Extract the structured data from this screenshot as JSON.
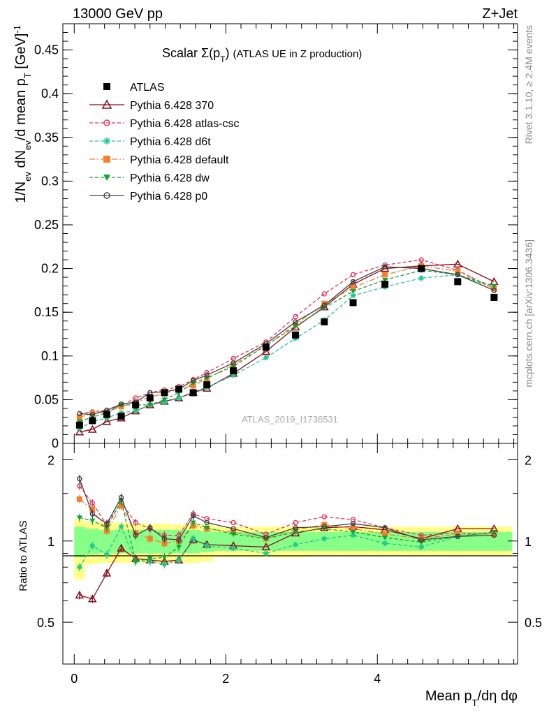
{
  "header": {
    "left": "13000 GeV pp",
    "right": "Z+Jet"
  },
  "side_labels": {
    "rivet": "Rivet 3.1.10, ≥ 2.4M events",
    "mcplots": "mcplots.cern.ch [arXiv:1306.3436]"
  },
  "watermark": "ATLAS_2019_I1736531",
  "chart_data": {
    "type": "line",
    "title": "Scalar Σ(p_T) (ATLAS UE in Z production)",
    "xlabel": "Mean p_T/dη dφ",
    "ylabel": "1/N_ev dN_ev/d mean p_T [GeV]^-1",
    "ratio_ylabel": "Ratio to ATLAS",
    "xlim": [
      -0.15,
      5.85
    ],
    "ylim": [
      0,
      0.48
    ],
    "ratio_ylim": [
      0.35,
      2.3
    ],
    "x_ticks": [
      0,
      2,
      4
    ],
    "y_ticks": [
      0,
      0.05,
      0.1,
      0.15,
      0.2,
      0.25,
      0.3,
      0.35,
      0.4,
      0.45
    ],
    "y_tick_labels": [
      "0",
      "0.05",
      "0.1",
      "0.15",
      "0.2",
      "0.25",
      "0.3",
      "0.35",
      "0.4",
      "0.45"
    ],
    "ratio_ticks": [
      0.5,
      1,
      2
    ],
    "legend_position": "top-left",
    "x": [
      0.07,
      0.24,
      0.43,
      0.62,
      0.81,
      1.0,
      1.19,
      1.38,
      1.57,
      1.75,
      2.1,
      2.53,
      2.92,
      3.3,
      3.68,
      4.1,
      4.58,
      5.06,
      5.54
    ],
    "band": {
      "x_edges": [
        0.0,
        0.14,
        0.33,
        0.52,
        0.71,
        0.9,
        1.09,
        1.28,
        1.47,
        1.66,
        1.84,
        2.35,
        2.72,
        3.11,
        3.49,
        3.88,
        4.33,
        4.82,
        5.31,
        5.78
      ],
      "stat_lo": [
        0.87,
        0.89,
        0.9,
        0.9,
        0.9,
        0.9,
        0.9,
        0.9,
        0.9,
        0.91,
        0.92,
        0.92,
        0.92,
        0.92,
        0.92,
        0.92,
        0.92,
        0.92,
        0.92
      ],
      "stat_hi": [
        1.13,
        1.11,
        1.1,
        1.1,
        1.1,
        1.1,
        1.1,
        1.1,
        1.1,
        1.09,
        1.08,
        1.08,
        1.08,
        1.08,
        1.08,
        1.08,
        1.08,
        1.08,
        1.08
      ],
      "tot_lo": [
        0.72,
        0.82,
        0.83,
        0.83,
        0.83,
        0.83,
        0.83,
        0.83,
        0.83,
        0.84,
        0.87,
        0.87,
        0.87,
        0.88,
        0.88,
        0.88,
        0.88,
        0.88,
        0.88
      ],
      "tot_hi": [
        1.2,
        1.18,
        1.17,
        1.17,
        1.16,
        1.16,
        1.16,
        1.15,
        1.15,
        1.15,
        1.13,
        1.13,
        1.13,
        1.13,
        1.13,
        1.13,
        1.13,
        1.13,
        1.13
      ]
    },
    "series": [
      {
        "name": "ATLAS",
        "color": "#000000",
        "marker": "square",
        "dash": "none",
        "is_data": true,
        "values": [
          0.021,
          0.026,
          0.033,
          0.031,
          0.044,
          0.052,
          0.058,
          0.062,
          0.058,
          0.067,
          0.083,
          0.11,
          0.124,
          0.139,
          0.161,
          0.182,
          0.2,
          0.185,
          0.167
        ],
        "ratio": [
          1,
          1,
          1,
          1,
          1,
          1,
          1,
          1,
          1,
          1,
          1,
          1,
          1,
          1,
          1,
          1,
          1,
          1,
          1
        ]
      },
      {
        "name": "Pythia 6.428 370",
        "color": "#8b0a1a",
        "marker": "triangle",
        "dash": "none",
        "values": [
          0.013,
          0.016,
          0.025,
          0.029,
          0.037,
          0.044,
          0.048,
          0.052,
          0.058,
          0.063,
          0.08,
          0.105,
          0.133,
          0.156,
          0.182,
          0.2,
          0.203,
          0.205,
          0.185
        ],
        "ratio": [
          0.63,
          0.61,
          0.76,
          0.94,
          0.86,
          0.85,
          0.84,
          0.85,
          1.01,
          0.97,
          0.96,
          0.95,
          1.07,
          1.12,
          1.13,
          1.1,
          1.02,
          1.11,
          1.11
        ]
      },
      {
        "name": "Pythia 6.428 atlas-csc",
        "color": "#e8335a",
        "marker": "circle-open",
        "dash": "5,3",
        "values": [
          0.034,
          0.036,
          0.038,
          0.043,
          0.052,
          0.058,
          0.061,
          0.065,
          0.073,
          0.081,
          0.097,
          0.116,
          0.145,
          0.171,
          0.193,
          0.204,
          0.21,
          0.198,
          0.177
        ],
        "ratio": [
          1.6,
          1.38,
          1.15,
          1.39,
          1.17,
          1.11,
          1.05,
          1.05,
          1.26,
          1.21,
          1.17,
          1.06,
          1.17,
          1.23,
          1.2,
          1.12,
          1.05,
          1.07,
          1.06
        ]
      },
      {
        "name": "Pythia 6.428 d6t",
        "color": "#1ec98a",
        "marker": "star",
        "dash": "5,3",
        "values": [
          0.017,
          0.025,
          0.029,
          0.035,
          0.037,
          0.044,
          0.047,
          0.052,
          0.059,
          0.064,
          0.078,
          0.098,
          0.12,
          0.141,
          0.169,
          0.179,
          0.189,
          0.193,
          0.178
        ],
        "ratio": [
          0.8,
          0.96,
          0.89,
          1.13,
          0.84,
          0.84,
          0.82,
          0.85,
          1.02,
          0.96,
          0.94,
          0.9,
          0.97,
          1.02,
          1.05,
          0.98,
          0.95,
          1.04,
          1.07
        ]
      },
      {
        "name": "Pythia 6.428 default",
        "color": "#f57f2a",
        "marker": "square",
        "dash": "8,3,2,3",
        "values": [
          0.03,
          0.034,
          0.036,
          0.042,
          0.047,
          0.053,
          0.057,
          0.062,
          0.066,
          0.074,
          0.09,
          0.112,
          0.136,
          0.16,
          0.178,
          0.193,
          0.203,
          0.197,
          0.177
        ],
        "ratio": [
          1.43,
          1.31,
          1.09,
          1.35,
          1.07,
          1.02,
          0.98,
          1.0,
          1.14,
          1.11,
          1.08,
          1.02,
          1.1,
          1.15,
          1.11,
          1.06,
          1.02,
          1.06,
          1.06
        ]
      },
      {
        "name": "Pythia 6.428 dw",
        "color": "#11a33a",
        "marker": "triangle-down",
        "dash": "5,3",
        "values": [
          0.025,
          0.03,
          0.035,
          0.044,
          0.044,
          0.044,
          0.05,
          0.058,
          0.069,
          0.075,
          0.088,
          0.112,
          0.134,
          0.155,
          0.174,
          0.187,
          0.198,
          0.193,
          0.18
        ],
        "ratio": [
          1.22,
          1.19,
          1.12,
          1.41,
          0.84,
          0.86,
          0.87,
          0.95,
          1.17,
          1.12,
          1.06,
          1.02,
          1.08,
          1.11,
          1.08,
          1.03,
          0.99,
          1.04,
          1.08
        ]
      },
      {
        "name": "Pythia 6.428 p0",
        "color": "#404040",
        "marker": "circle-open",
        "dash": "none",
        "values": [
          0.034,
          0.033,
          0.038,
          0.045,
          0.047,
          0.058,
          0.059,
          0.062,
          0.072,
          0.078,
          0.092,
          0.114,
          0.139,
          0.158,
          0.185,
          0.202,
          0.2,
          0.193,
          0.175
        ],
        "ratio": [
          1.7,
          1.26,
          1.16,
          1.45,
          1.05,
          1.12,
          1.02,
          1.01,
          1.24,
          1.17,
          1.11,
          1.03,
          1.12,
          1.13,
          1.16,
          1.12,
          1.01,
          1.04,
          1.05
        ]
      }
    ]
  }
}
